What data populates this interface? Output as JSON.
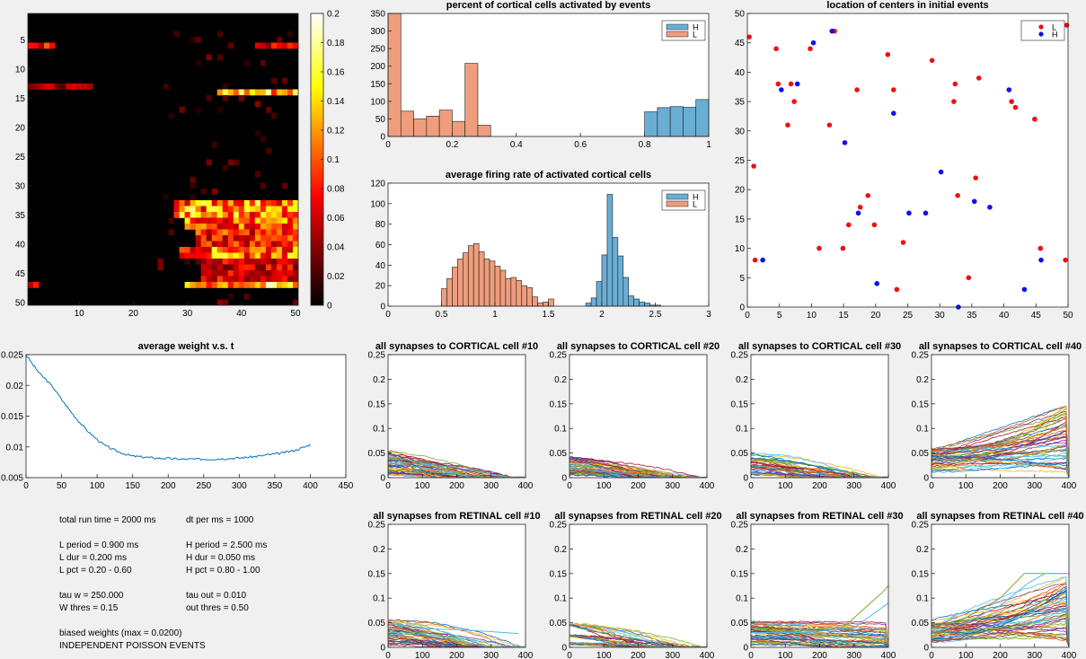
{
  "chart_data": [
    {
      "type": "heatmap",
      "title": "",
      "x_ticks": [
        10,
        20,
        30,
        40,
        50
      ],
      "y_ticks": [
        5,
        10,
        15,
        20,
        25,
        30,
        35,
        40,
        45,
        50
      ],
      "xlim": [
        0.5,
        50.5
      ],
      "ylim": [
        0.5,
        50.5
      ],
      "colorbar_ticks": [
        0,
        0.02,
        0.04,
        0.06,
        0.08,
        0.1,
        0.12,
        0.14,
        0.16,
        0.18,
        0.2
      ],
      "clim": [
        0,
        0.2
      ],
      "colormap": "hot",
      "hot_regions": [
        {
          "rows": [
            6,
            6
          ],
          "cols": [
            1,
            5
          ],
          "level": 0.09
        },
        {
          "rows": [
            6,
            6
          ],
          "cols": [
            43,
            50
          ],
          "level": 0.07
        },
        {
          "rows": [
            13,
            13
          ],
          "cols": [
            1,
            12
          ],
          "level": 0.05
        },
        {
          "rows": [
            14,
            14
          ],
          "cols": [
            36,
            50
          ],
          "level": 0.15
        },
        {
          "rows": [
            33,
            35
          ],
          "cols": [
            28,
            50
          ],
          "level": 0.13
        },
        {
          "rows": [
            36,
            37
          ],
          "cols": [
            30,
            50
          ],
          "level": 0.11
        },
        {
          "rows": [
            38,
            40
          ],
          "cols": [
            32,
            50
          ],
          "level": 0.09
        },
        {
          "rows": [
            41,
            42
          ],
          "cols": [
            29,
            50
          ],
          "level": 0.12
        },
        {
          "rows": [
            43,
            46
          ],
          "cols": [
            33,
            50
          ],
          "level": 0.07
        },
        {
          "rows": [
            47,
            47
          ],
          "cols": [
            1,
            2
          ],
          "level": 0.1
        },
        {
          "rows": [
            47,
            47
          ],
          "cols": [
            30,
            50
          ],
          "level": 0.14
        }
      ]
    },
    {
      "type": "bar",
      "title": "percent of cortical cells activated by events",
      "xlim": [
        0,
        1
      ],
      "ylim": [
        0,
        350
      ],
      "x_ticks": [
        0,
        0.2,
        0.4,
        0.6,
        0.8,
        1
      ],
      "y_ticks": [
        0,
        50,
        100,
        150,
        200,
        250,
        300,
        350
      ],
      "legend": [
        "H",
        "L"
      ],
      "legend_position": "top-right",
      "series": [
        {
          "name": "H",
          "color": "#6aaed6",
          "bins": [
            [
              0.8,
              0.84,
              70
            ],
            [
              0.84,
              0.88,
              82
            ],
            [
              0.88,
              0.92,
              85
            ],
            [
              0.92,
              0.96,
              83
            ],
            [
              0.96,
              1.0,
              105
            ]
          ]
        },
        {
          "name": "L",
          "color": "#ef9d7c",
          "bins": [
            [
              0,
              0.04,
              350
            ],
            [
              0.04,
              0.08,
              72
            ],
            [
              0.08,
              0.12,
              50
            ],
            [
              0.12,
              0.16,
              58
            ],
            [
              0.16,
              0.2,
              75
            ],
            [
              0.2,
              0.24,
              43
            ],
            [
              0.24,
              0.28,
              208
            ],
            [
              0.28,
              0.32,
              32
            ]
          ]
        }
      ]
    },
    {
      "type": "scatter",
      "title": "location of centers in initial events",
      "xlim": [
        0,
        50
      ],
      "ylim": [
        0,
        50
      ],
      "x_ticks": [
        0,
        5,
        10,
        15,
        20,
        25,
        30,
        35,
        40,
        45,
        50
      ],
      "y_ticks": [
        0,
        5,
        10,
        15,
        20,
        25,
        30,
        35,
        40,
        45,
        50
      ],
      "legend": [
        "L",
        "H"
      ],
      "legend_position": "top-right",
      "series": [
        {
          "name": "L",
          "color": "#ee1111",
          "points": [
            [
              0.3,
              46
            ],
            [
              1,
              24
            ],
            [
              1.2,
              8
            ],
            [
              4.5,
              44
            ],
            [
              4.8,
              38
            ],
            [
              6.3,
              31
            ],
            [
              6.8,
              38
            ],
            [
              7.3,
              35
            ],
            [
              9.8,
              44
            ],
            [
              11.2,
              10
            ],
            [
              12.8,
              31
            ],
            [
              13.6,
              47
            ],
            [
              14.9,
              10
            ],
            [
              15.8,
              14
            ],
            [
              17.1,
              37
            ],
            [
              17.6,
              17
            ],
            [
              18.8,
              19
            ],
            [
              19.8,
              14
            ],
            [
              21.9,
              43
            ],
            [
              22.8,
              37
            ],
            [
              23.3,
              3
            ],
            [
              24.3,
              11
            ],
            [
              28.8,
              42
            ],
            [
              32.2,
              35
            ],
            [
              32.4,
              38
            ],
            [
              32.8,
              19
            ],
            [
              34.5,
              5
            ],
            [
              35.6,
              22
            ],
            [
              36.1,
              39
            ],
            [
              41.2,
              35
            ],
            [
              41.8,
              34
            ],
            [
              44.8,
              32
            ],
            [
              45.7,
              10
            ],
            [
              49.6,
              8
            ],
            [
              49.8,
              48
            ]
          ]
        },
        {
          "name": "H",
          "color": "#1111ee",
          "points": [
            [
              2.4,
              8
            ],
            [
              5.3,
              37
            ],
            [
              7.8,
              38
            ],
            [
              10.3,
              45
            ],
            [
              13.2,
              47
            ],
            [
              15.2,
              28
            ],
            [
              17.3,
              16
            ],
            [
              20.2,
              4
            ],
            [
              22.8,
              33
            ],
            [
              25.2,
              16
            ],
            [
              27.8,
              16
            ],
            [
              30.2,
              23
            ],
            [
              32.9,
              0
            ],
            [
              35.4,
              18
            ],
            [
              37.8,
              17
            ],
            [
              40.8,
              37
            ],
            [
              43.2,
              3
            ],
            [
              45.8,
              8
            ]
          ]
        }
      ]
    },
    {
      "type": "bar",
      "title": "average firing rate of activated cortical cells",
      "xlim": [
        0,
        3
      ],
      "ylim": [
        0,
        120
      ],
      "x_ticks": [
        0,
        0.5,
        1,
        1.5,
        2,
        2.5,
        3
      ],
      "y_ticks": [
        0,
        20,
        40,
        60,
        80,
        100,
        120
      ],
      "legend": [
        "H",
        "L"
      ],
      "legend_position": "top-right",
      "series": [
        {
          "name": "H",
          "color": "#6aaed6",
          "start": 1.85,
          "width": 0.05,
          "counts": [
            3,
            8,
            24,
            50,
            109,
            67,
            49,
            28,
            10,
            7,
            4,
            3,
            1,
            1
          ]
        },
        {
          "name": "L",
          "color": "#ef9d7c",
          "start": 0.5,
          "width": 0.05,
          "counts": [
            17,
            27,
            38,
            46,
            52,
            59,
            61,
            53,
            46,
            44,
            39,
            35,
            27,
            28,
            25,
            20,
            18,
            9,
            3,
            4,
            7
          ]
        }
      ]
    },
    {
      "type": "line",
      "title": "average weight v.s. t",
      "xlim": [
        0,
        450
      ],
      "ylim": [
        0.005,
        0.025
      ],
      "x_ticks": [
        0,
        50,
        100,
        150,
        200,
        250,
        300,
        350,
        400,
        450
      ],
      "y_ticks": [
        0.005,
        0.01,
        0.015,
        0.02,
        0.025
      ],
      "series": [
        {
          "name": "",
          "color": "#0072bd",
          "x": [
            0,
            10,
            20,
            30,
            40,
            50,
            60,
            70,
            80,
            90,
            100,
            110,
            120,
            130,
            140,
            150,
            160,
            180,
            200,
            220,
            240,
            260,
            280,
            300,
            320,
            340,
            360,
            380,
            395,
            400
          ],
          "y": [
            0.025,
            0.0233,
            0.0218,
            0.0207,
            0.0194,
            0.0177,
            0.0162,
            0.0147,
            0.0134,
            0.0122,
            0.0112,
            0.0103,
            0.0097,
            0.0092,
            0.0088,
            0.0085,
            0.0084,
            0.0082,
            0.0081,
            0.008,
            0.008,
            0.008,
            0.0081,
            0.0082,
            0.0084,
            0.0087,
            0.009,
            0.0095,
            0.0101,
            0.0104
          ]
        }
      ]
    },
    {
      "type": "line",
      "title": "all synapses to CORTICAL cell #10",
      "xlim": [
        0,
        400
      ],
      "ylim": [
        0,
        0.25
      ],
      "x_ticks": [
        0,
        100,
        200,
        300,
        400
      ],
      "y_ticks": [
        0,
        0.05,
        0.1,
        0.15,
        0.2,
        0.25
      ],
      "trend": "decay",
      "start_range": [
        0.005,
        0.056
      ],
      "end_range": [
        0,
        0
      ],
      "notable": []
    },
    {
      "type": "line",
      "title": "all synapses to CORTICAL cell #20",
      "xlim": [
        0,
        400
      ],
      "ylim": [
        0,
        0.25
      ],
      "x_ticks": [
        0,
        100,
        200,
        300,
        400
      ],
      "y_ticks": [
        0,
        0.05,
        0.1,
        0.15,
        0.2,
        0.25
      ],
      "trend": "decay",
      "start_range": [
        0.005,
        0.045
      ],
      "end_range": [
        0,
        0
      ],
      "notable": []
    },
    {
      "type": "line",
      "title": "all synapses to CORTICAL cell #30",
      "xlim": [
        0,
        400
      ],
      "ylim": [
        0,
        0.25
      ],
      "x_ticks": [
        0,
        100,
        200,
        300,
        400
      ],
      "y_ticks": [
        0,
        0.05,
        0.1,
        0.15,
        0.2,
        0.25
      ],
      "trend": "decay",
      "start_range": [
        0.005,
        0.05
      ],
      "end_range": [
        0,
        0.01
      ],
      "notable": []
    },
    {
      "type": "line",
      "title": "all synapses to CORTICAL cell #40",
      "xlim": [
        0,
        400
      ],
      "ylim": [
        0,
        0.25
      ],
      "x_ticks": [
        0,
        100,
        200,
        300,
        400
      ],
      "y_ticks": [
        0,
        0.05,
        0.1,
        0.15,
        0.2,
        0.25
      ],
      "trend": "grow",
      "start_range": [
        0.01,
        0.06
      ],
      "end_range": [
        0.005,
        0.15
      ],
      "notable": []
    },
    {
      "type": "line",
      "title": "all synapses from RETINAL cell #10",
      "xlim": [
        0,
        400
      ],
      "ylim": [
        0,
        0.25
      ],
      "x_ticks": [
        0,
        100,
        200,
        300,
        400
      ],
      "y_ticks": [
        0,
        0.05,
        0.1,
        0.15,
        0.2,
        0.25
      ],
      "trend": "decay",
      "start_range": [
        0.005,
        0.056
      ],
      "end_range": [
        0,
        0
      ],
      "notable": [
        {
          "x": [
            0,
            50,
            100,
            200,
            300,
            380
          ],
          "y": [
            0.05,
            0.042,
            0.038,
            0.036,
            0.032,
            0.028
          ],
          "color": "#4dbeee"
        }
      ]
    },
    {
      "type": "line",
      "title": "all synapses from RETINAL cell #20",
      "xlim": [
        0,
        400
      ],
      "ylim": [
        0,
        0.25
      ],
      "x_ticks": [
        0,
        100,
        200,
        300,
        400
      ],
      "y_ticks": [
        0,
        0.05,
        0.1,
        0.15,
        0.2,
        0.25
      ],
      "trend": "decay",
      "start_range": [
        0.005,
        0.05
      ],
      "end_range": [
        0,
        0
      ],
      "notable": []
    },
    {
      "type": "line",
      "title": "all synapses from RETINAL cell #30",
      "xlim": [
        0,
        400
      ],
      "ylim": [
        0,
        0.25
      ],
      "x_ticks": [
        0,
        100,
        200,
        300,
        400
      ],
      "y_ticks": [
        0,
        0.05,
        0.1,
        0.15,
        0.2,
        0.25
      ],
      "trend": "flat",
      "start_range": [
        0.005,
        0.055
      ],
      "end_range": [
        0,
        0.05
      ],
      "notable": [
        {
          "x": [
            0,
            100,
            200,
            260,
            300,
            340,
            380,
            400
          ],
          "y": [
            0.04,
            0.035,
            0.034,
            0.036,
            0.06,
            0.085,
            0.11,
            0.125
          ],
          "color": "#77ac30"
        },
        {
          "x": [
            0,
            150,
            300,
            400
          ],
          "y": [
            0.03,
            0.03,
            0.04,
            0.09
          ],
          "color": "#4dbeee"
        }
      ]
    },
    {
      "type": "line",
      "title": "all synapses from RETINAL cell #40",
      "xlim": [
        0,
        400
      ],
      "ylim": [
        0,
        0.25
      ],
      "x_ticks": [
        0,
        100,
        200,
        300,
        400
      ],
      "y_ticks": [
        0,
        0.05,
        0.1,
        0.15,
        0.2,
        0.25
      ],
      "trend": "grow",
      "start_range": [
        0.01,
        0.055
      ],
      "end_range": [
        0.01,
        0.15
      ],
      "notable": [
        {
          "x": [
            0,
            100,
            200,
            270,
            300,
            400
          ],
          "y": [
            0.04,
            0.06,
            0.1,
            0.15,
            0.15,
            0.15
          ],
          "color": "#77ac30"
        },
        {
          "x": [
            0,
            100,
            200,
            280,
            330,
            380,
            400
          ],
          "y": [
            0.03,
            0.05,
            0.085,
            0.13,
            0.15,
            0.15,
            0.15
          ],
          "color": "#4dbeee"
        }
      ]
    }
  ],
  "params": {
    "total_run_time": "total run time = 2000 ms",
    "dt_per_ms": "dt per ms = 1000",
    "l_period": "L period = 0.900 ms",
    "h_period": "H period = 2.500 ms",
    "l_dur": "L dur = 0.200 ms",
    "h_dur": "H dur = 0.050 ms",
    "l_pct": "L pct = 0.20 - 0.60",
    "h_pct": "H pct = 0.80 - 1.00",
    "tau_w": "tau w = 250.000",
    "tau_out": "tau out = 0.010",
    "w_thres": "W thres = 0.15",
    "out_thres": "out thres = 0.50",
    "biased": "biased weights (max = 0.0200)",
    "events": "INDEPENDENT POISSON EVENTS"
  }
}
